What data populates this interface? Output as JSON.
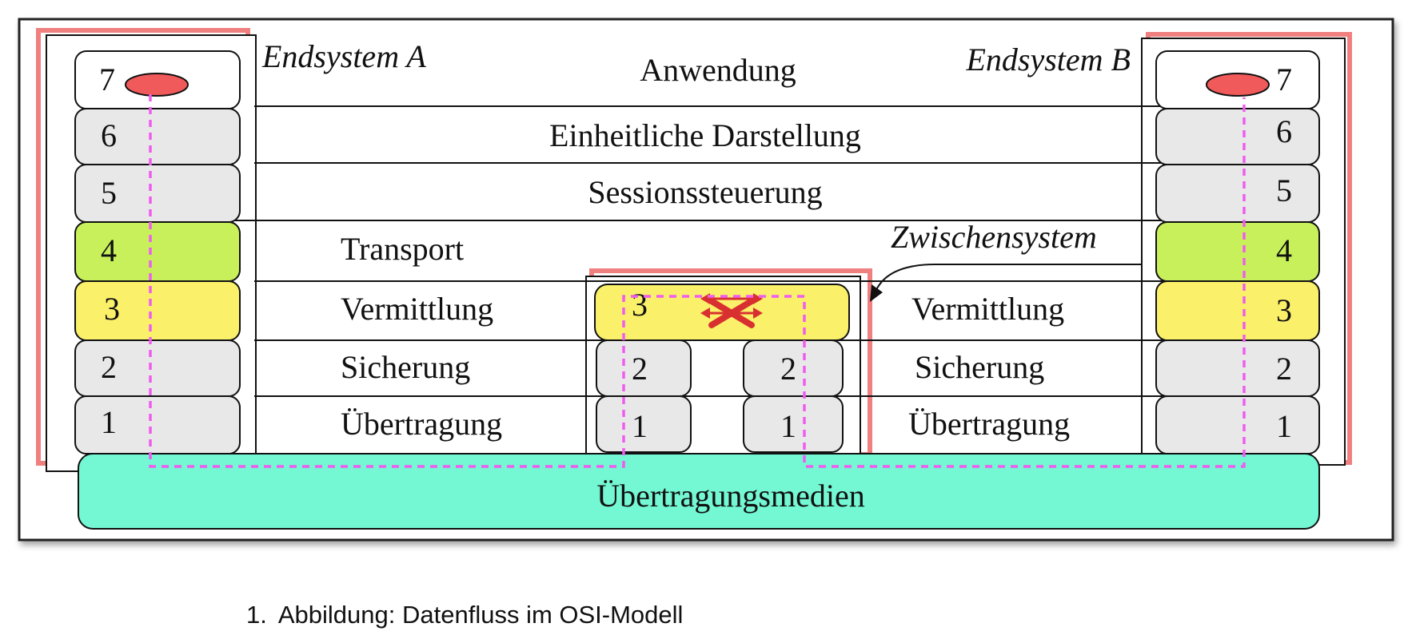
{
  "labels": {
    "endsystem_a": "Endsystem A",
    "endsystem_b": "Endsystem B",
    "zwischensystem": "Zwischensystem",
    "medium": "Übertragungsmedien"
  },
  "layers": {
    "l7": "Anwendung",
    "l6": "Einheitliche Darstellung",
    "l5": "Sessionssteuerung",
    "l4": "Transport",
    "l3_left": "Vermittlung",
    "l3_right": "Vermittlung",
    "l2_left": "Sicherung",
    "l2_right": "Sicherung",
    "l1_left": "Übertragung",
    "l1_right": "Übertragung"
  },
  "stack_a": [
    "7",
    "6",
    "5",
    "4",
    "3",
    "2",
    "1"
  ],
  "stack_b": [
    "7",
    "6",
    "5",
    "4",
    "3",
    "2",
    "1"
  ],
  "router": {
    "l3": "3",
    "l2_left": "2",
    "l2_right": "2",
    "l1_left": "1",
    "l1_right": "1"
  },
  "caption": {
    "number": "1.",
    "text": "Abbildung: Datenfluss im OSI-Modell"
  },
  "colors": {
    "layer4": "#c8f05a",
    "layer3": "#fbf06a",
    "other_layers": "#e8e8e8",
    "medium": "#74f7d3",
    "app_marker": "#f05a5a",
    "data_path": "#f05cf0",
    "frame_accent": "#f08080"
  }
}
